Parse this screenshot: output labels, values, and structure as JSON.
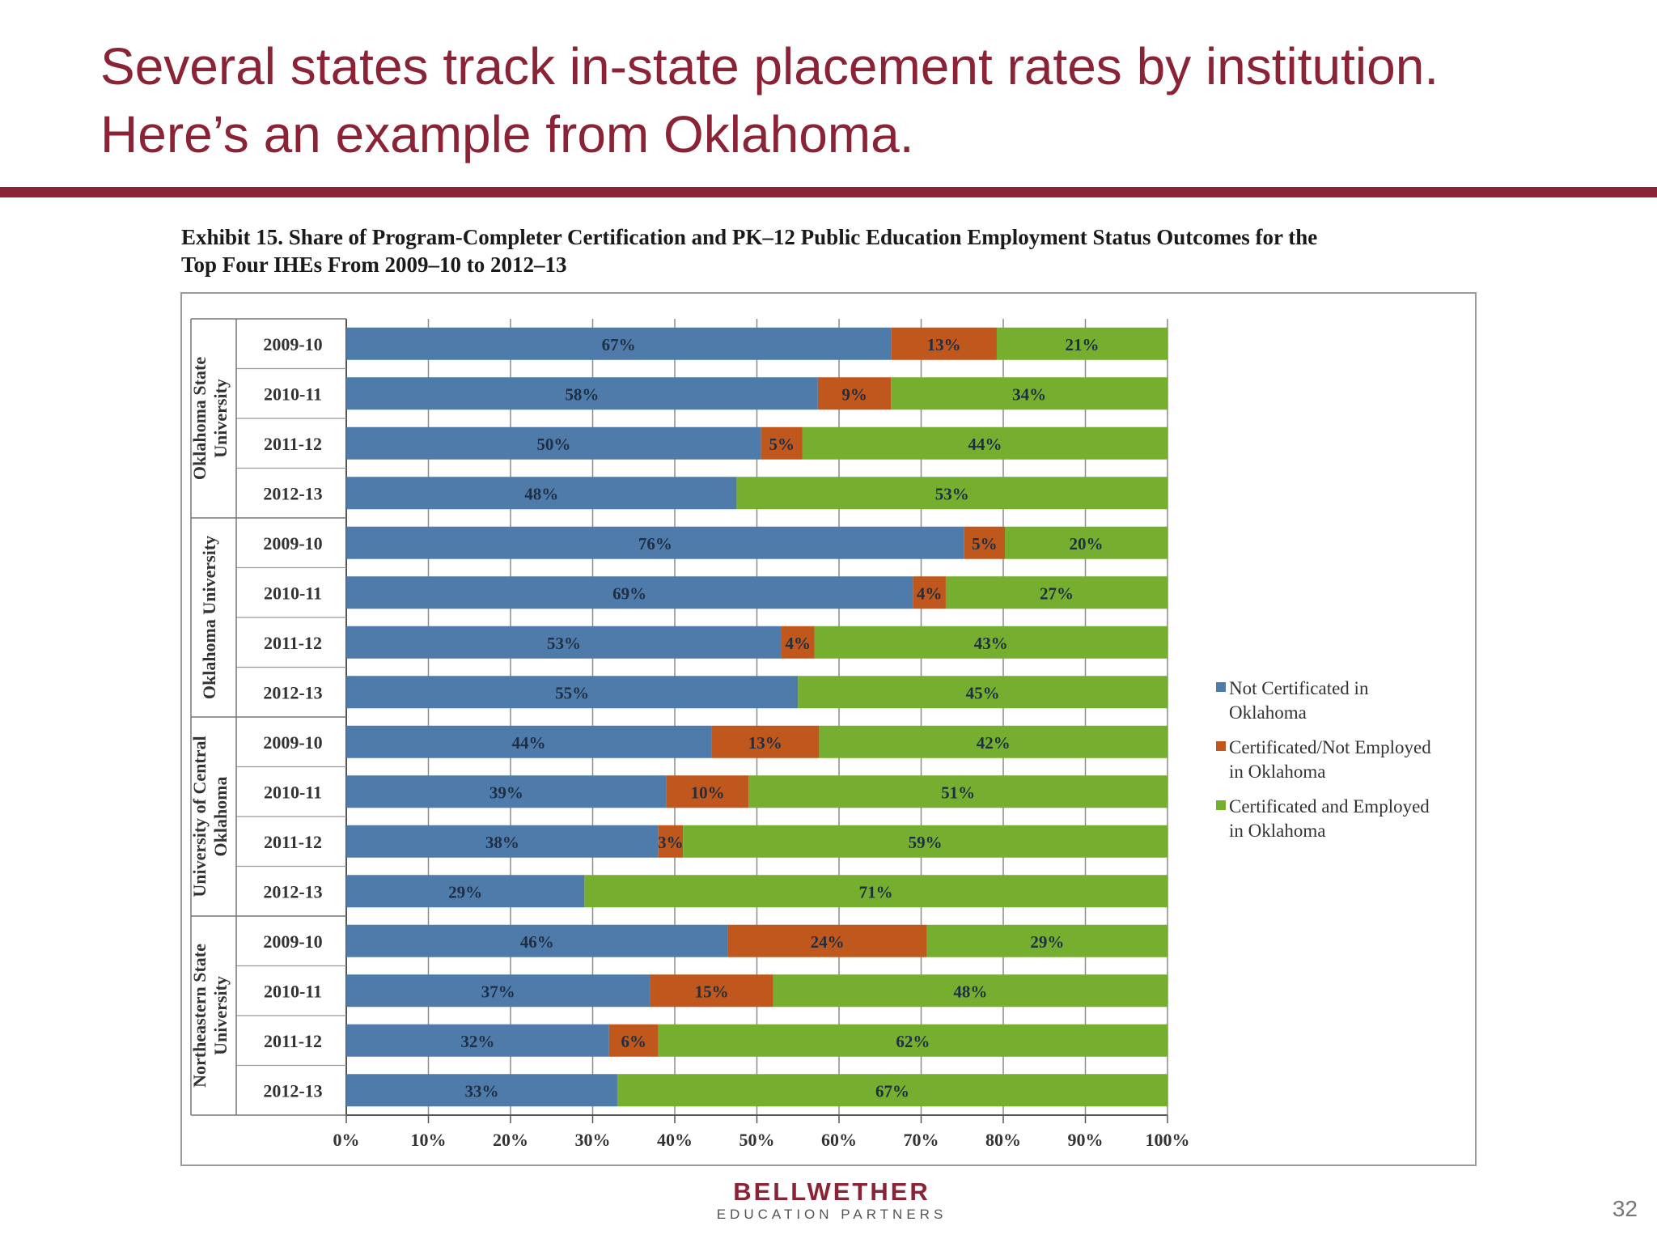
{
  "slide": {
    "title_line1": "Several states track in-state placement rates by institution.",
    "title_line2": "Here’s an example from Oklahoma.",
    "page_number": "32",
    "accent_color": "#8a2335"
  },
  "logo": {
    "name": "BELLWETHER",
    "subtitle": "EDUCATION PARTNERS"
  },
  "chart_data": {
    "type": "bar",
    "orientation": "horizontal",
    "stacked": true,
    "title": "Exhibit 15. Share of Program-Completer Certification and PK–12 Public Education Employment Status Outcomes for the Top Four IHEs From 2009–10 to 2012–13",
    "title_lines": [
      "Exhibit 15. Share of Program-Completer Certification and PK–12 Public Education Employment Status Outcomes for the",
      "Top Four IHEs From 2009–10 to 2012–13"
    ],
    "xlim": [
      0,
      100
    ],
    "x_ticks": [
      "0%",
      "10%",
      "20%",
      "30%",
      "40%",
      "50%",
      "60%",
      "70%",
      "80%",
      "90%",
      "100%"
    ],
    "grid": true,
    "legend_position": "right",
    "groups": [
      {
        "name_lines": [
          "Oklahoma State",
          "University"
        ],
        "years": [
          "2009-10",
          "2010-11",
          "2011-12",
          "2012-13"
        ]
      },
      {
        "name_lines": [
          "Oklahoma University"
        ],
        "years": [
          "2009-10",
          "2010-11",
          "2011-12",
          "2012-13"
        ]
      },
      {
        "name_lines": [
          "University of Central",
          "Oklahoma"
        ],
        "years": [
          "2009-10",
          "2010-11",
          "2011-12",
          "2012-13"
        ]
      },
      {
        "name_lines": [
          "Northeastern State",
          "University"
        ],
        "years": [
          "2009-10",
          "2010-11",
          "2011-12",
          "2012-13"
        ]
      }
    ],
    "series": [
      {
        "name": "Not Certificated in Oklahoma",
        "legend_lines": [
          "Not Certificated in",
          "Oklahoma"
        ],
        "color": "#4f7bab",
        "values": [
          67,
          58,
          50,
          48,
          76,
          69,
          53,
          55,
          44,
          39,
          38,
          29,
          46,
          37,
          32,
          33
        ]
      },
      {
        "name": "Certificated/Not Employed in Oklahoma",
        "legend_lines": [
          "Certificated/Not Employed",
          "in Oklahoma"
        ],
        "color": "#c0571c",
        "values": [
          13,
          9,
          5,
          0,
          5,
          4,
          4,
          0,
          13,
          10,
          3,
          0,
          24,
          15,
          6,
          0
        ]
      },
      {
        "name": "Certificated and Employed in Oklahoma",
        "legend_lines": [
          "Certificated and Employed",
          "in Oklahoma"
        ],
        "color": "#76ae2f",
        "values": [
          21,
          34,
          44,
          53,
          20,
          27,
          43,
          45,
          42,
          51,
          59,
          71,
          29,
          48,
          62,
          67
        ]
      }
    ]
  }
}
